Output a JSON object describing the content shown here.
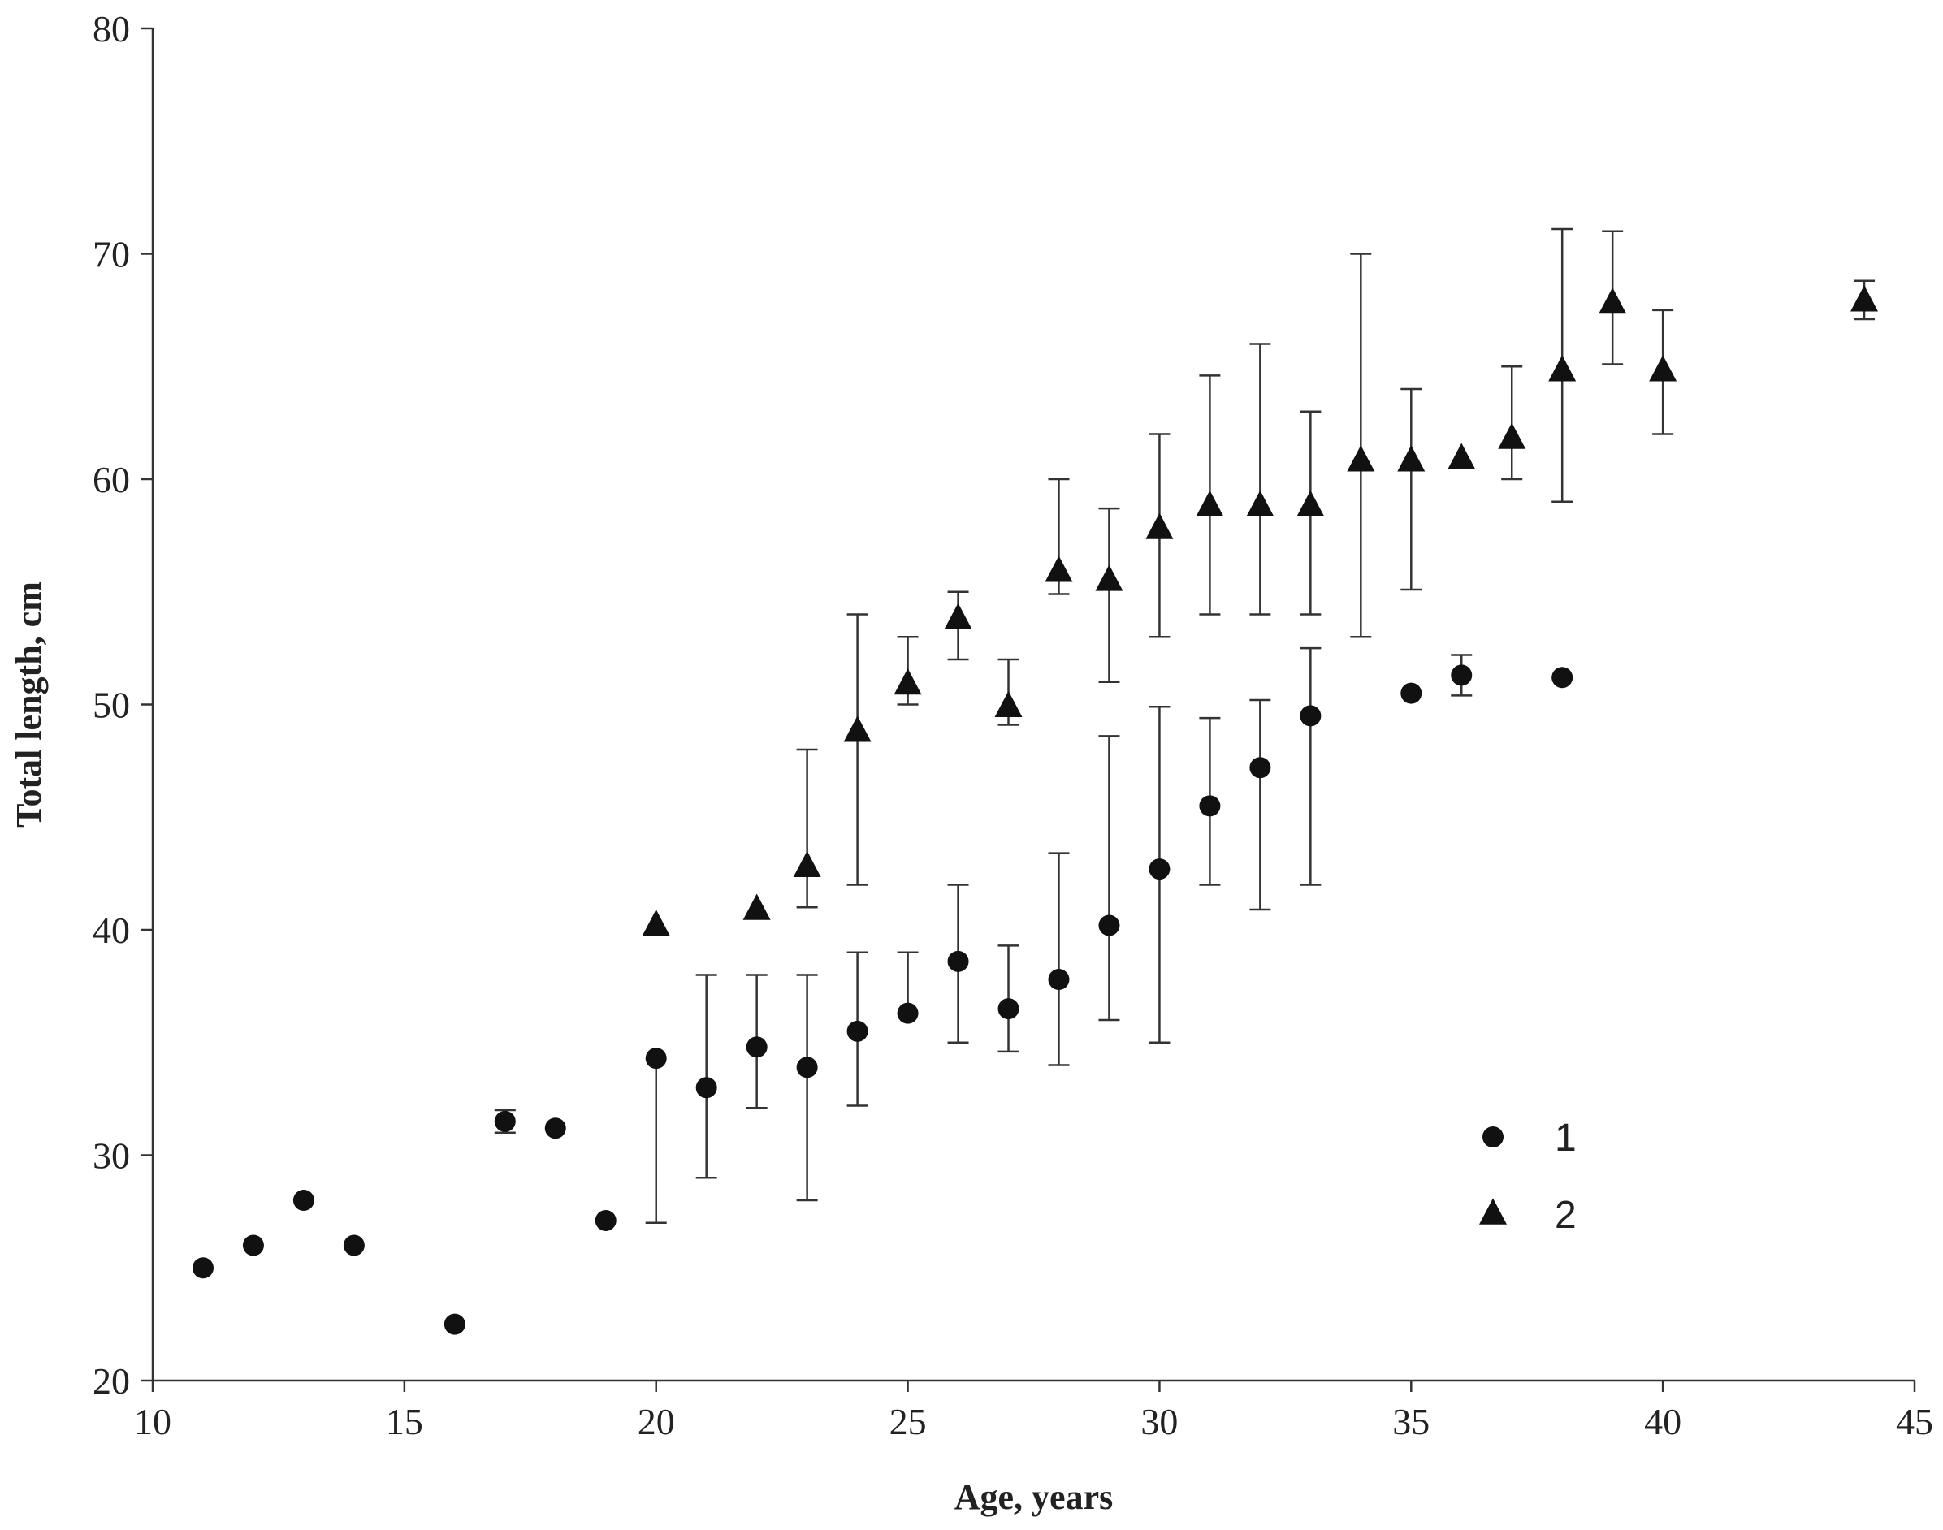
{
  "chart_data": {
    "type": "scatter",
    "title": "",
    "xlabel": "Age, years",
    "ylabel": "Total length, cm",
    "xlim": [
      10,
      45
    ],
    "ylim": [
      20,
      80
    ],
    "xticks": [
      10,
      15,
      20,
      25,
      30,
      35,
      40,
      45
    ],
    "yticks": [
      20,
      30,
      40,
      50,
      60,
      70,
      80
    ],
    "grid": false,
    "legend_position": "bottom-right",
    "series": [
      {
        "name": "1",
        "marker": "circle",
        "color": "#111111",
        "points": [
          {
            "x": 11,
            "y": 25.0
          },
          {
            "x": 12,
            "y": 26.0
          },
          {
            "x": 13,
            "y": 28.0
          },
          {
            "x": 14,
            "y": 26.0
          },
          {
            "x": 16,
            "y": 22.5
          },
          {
            "x": 17,
            "y": 31.5,
            "err_low": 31.0,
            "err_high": 32.0
          },
          {
            "x": 18,
            "y": 31.2
          },
          {
            "x": 19,
            "y": 27.1
          },
          {
            "x": 20,
            "y": 34.3,
            "err_low": 27.0
          },
          {
            "x": 21,
            "y": 33.0,
            "err_low": 29.0,
            "err_high": 38.0
          },
          {
            "x": 22,
            "y": 34.8,
            "err_low": 32.1,
            "err_high": 38.0
          },
          {
            "x": 23,
            "y": 33.9,
            "err_low": 28.0,
            "err_high": 38.0
          },
          {
            "x": 24,
            "y": 35.5,
            "err_low": 32.2,
            "err_high": 39.0
          },
          {
            "x": 25,
            "y": 36.3,
            "err_high": 39.0
          },
          {
            "x": 26,
            "y": 38.6,
            "err_low": 35.0,
            "err_high": 42.0
          },
          {
            "x": 27,
            "y": 36.5,
            "err_low": 34.6,
            "err_high": 39.3
          },
          {
            "x": 28,
            "y": 37.8,
            "err_low": 34.0,
            "err_high": 43.4
          },
          {
            "x": 29,
            "y": 40.2,
            "err_low": 36.0,
            "err_high": 48.6
          },
          {
            "x": 30,
            "y": 42.7,
            "err_low": 35.0,
            "err_high": 49.9
          },
          {
            "x": 31,
            "y": 45.5,
            "err_low": 42.0,
            "err_high": 49.4
          },
          {
            "x": 32,
            "y": 47.2,
            "err_low": 40.9,
            "err_high": 50.2
          },
          {
            "x": 33,
            "y": 49.5,
            "err_low": 42.0,
            "err_high": 52.5
          },
          {
            "x": 35,
            "y": 50.5
          },
          {
            "x": 36,
            "y": 51.3,
            "err_low": 50.4,
            "err_high": 52.2
          },
          {
            "x": 38,
            "y": 51.2
          }
        ]
      },
      {
        "name": "2",
        "marker": "triangle",
        "color": "#111111",
        "points": [
          {
            "x": 20,
            "y": 40.2
          },
          {
            "x": 22,
            "y": 40.9
          },
          {
            "x": 23,
            "y": 42.8,
            "err_low": 41.0,
            "err_high": 48.0
          },
          {
            "x": 24,
            "y": 48.8,
            "err_low": 42.0,
            "err_high": 54.0
          },
          {
            "x": 25,
            "y": 50.9,
            "err_low": 50.0,
            "err_high": 53.0
          },
          {
            "x": 26,
            "y": 53.8,
            "err_low": 52.0,
            "err_high": 55.0
          },
          {
            "x": 27,
            "y": 49.9,
            "err_low": 49.1,
            "err_high": 52.0
          },
          {
            "x": 28,
            "y": 55.9,
            "err_low": 54.9,
            "err_high": 60.0
          },
          {
            "x": 29,
            "y": 55.5,
            "err_low": 51.0,
            "err_high": 58.7
          },
          {
            "x": 30,
            "y": 57.8,
            "err_low": 53.0,
            "err_high": 62.0
          },
          {
            "x": 31,
            "y": 58.8,
            "err_low": 54.0,
            "err_high": 64.6
          },
          {
            "x": 32,
            "y": 58.8,
            "err_low": 54.0,
            "err_high": 66.0
          },
          {
            "x": 33,
            "y": 58.8,
            "err_low": 54.0,
            "err_high": 63.0
          },
          {
            "x": 34,
            "y": 60.8,
            "err_low": 53.0,
            "err_high": 70.0
          },
          {
            "x": 35,
            "y": 60.8,
            "err_low": 55.1,
            "err_high": 64.0
          },
          {
            "x": 36,
            "y": 60.9
          },
          {
            "x": 37,
            "y": 61.8,
            "err_low": 60.0,
            "err_high": 65.0
          },
          {
            "x": 38,
            "y": 64.8,
            "err_low": 59.0,
            "err_high": 71.1
          },
          {
            "x": 39,
            "y": 67.8,
            "err_low": 65.1,
            "err_high": 71.0
          },
          {
            "x": 40,
            "y": 64.8,
            "err_low": 62.0,
            "err_high": 67.5
          },
          {
            "x": 44,
            "y": 67.9,
            "err_low": 67.1,
            "err_high": 68.8
          }
        ]
      }
    ]
  }
}
